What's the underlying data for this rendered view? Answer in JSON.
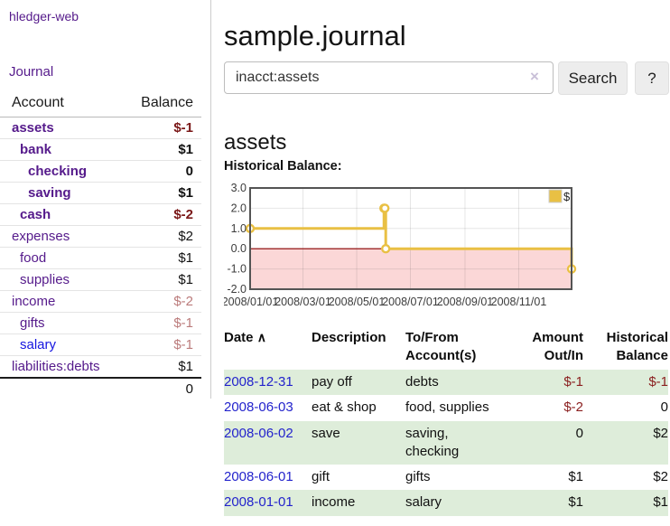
{
  "colors": {
    "link_purple": "#551a8b",
    "link_unvisited_blue": "#1515e0",
    "date_link_blue": "#2323cc",
    "negative_strong": "#7a1717",
    "negative_faded": "#bb7b7b",
    "negative_register": "#8b2020",
    "row_green": "#deedda",
    "chart_line_yellow": "#e9c044",
    "chart_negative_region": "#fbd7d7",
    "chart_zero_line": "#8b0000"
  },
  "sidebar": {
    "brand": "hledger-web",
    "journal_link": "Journal",
    "accounts_table": {
      "headers": {
        "account": "Account",
        "balance": "Balance"
      },
      "rows": [
        {
          "name": "assets",
          "depth": 1,
          "bold": true,
          "link": "visited",
          "balance": "$-1",
          "style": "neg-strong"
        },
        {
          "name": "bank",
          "depth": 2,
          "bold": true,
          "link": "visited",
          "balance": "$1",
          "style": "plain-strong"
        },
        {
          "name": "checking",
          "depth": 3,
          "bold": true,
          "link": "visited",
          "balance": "0",
          "style": "plain-strong"
        },
        {
          "name": "saving",
          "depth": 3,
          "bold": true,
          "link": "visited",
          "balance": "$1",
          "style": "plain-strong"
        },
        {
          "name": "cash",
          "depth": 2,
          "bold": true,
          "link": "visited",
          "balance": "$-2",
          "style": "neg-strong"
        },
        {
          "name": "expenses",
          "depth": 1,
          "bold": false,
          "link": "visited",
          "balance": "$2",
          "style": "plain"
        },
        {
          "name": "food",
          "depth": 2,
          "bold": false,
          "link": "visited",
          "balance": "$1",
          "style": "plain"
        },
        {
          "name": "supplies",
          "depth": 2,
          "bold": false,
          "link": "visited",
          "balance": "$1",
          "style": "plain"
        },
        {
          "name": "income",
          "depth": 1,
          "bold": false,
          "link": "visited",
          "balance": "$-2",
          "style": "neg-faded"
        },
        {
          "name": "gifts",
          "depth": 2,
          "bold": false,
          "link": "visited",
          "balance": "$-1",
          "style": "neg-faded"
        },
        {
          "name": "salary",
          "depth": 2,
          "bold": false,
          "link": "unvisited",
          "balance": "$-1",
          "style": "neg-faded"
        },
        {
          "name": "liabilities:debts",
          "depth": 1,
          "bold": false,
          "link": "visited",
          "balance": "$1",
          "style": "plain"
        }
      ],
      "total": "0"
    }
  },
  "main": {
    "title": "sample.journal",
    "search": {
      "value": "inacct:assets",
      "clear_icon": "×",
      "button": "Search",
      "help_button": "?"
    },
    "section_title": "assets",
    "chart_label": "Historical Balance:",
    "register_table": {
      "headers": {
        "date": "Date",
        "sort_icon": "∧",
        "description": "Description",
        "accounts_line1": "To/From",
        "accounts_line2": "Account(s)",
        "amount_line1": "Amount",
        "amount_line2": "Out/In",
        "balance_line1": "Historical",
        "balance_line2": "Balance"
      },
      "rows": [
        {
          "date": "2008-12-31",
          "description": "pay off",
          "accounts": "debts",
          "amount": "$-1",
          "amount_style": "neg",
          "balance": "$-1",
          "balance_style": "neg"
        },
        {
          "date": "2008-06-03",
          "description": "eat & shop",
          "accounts": "food, supplies",
          "amount": "$-2",
          "amount_style": "neg",
          "balance": "0",
          "balance_style": "plain"
        },
        {
          "date": "2008-06-02",
          "description": "save",
          "accounts": "saving, checking",
          "amount": "0",
          "amount_style": "plain",
          "balance": "$2",
          "balance_style": "plain"
        },
        {
          "date": "2008-06-01",
          "description": "gift",
          "accounts": "gifts",
          "amount": "$1",
          "amount_style": "plain",
          "balance": "$2",
          "balance_style": "plain"
        },
        {
          "date": "2008-01-01",
          "description": "income",
          "accounts": "salary",
          "amount": "$1",
          "amount_style": "plain",
          "balance": "$1",
          "balance_style": "plain"
        }
      ]
    }
  },
  "chart_data": {
    "type": "line",
    "step": true,
    "title": "Historical Balance:",
    "series": [
      {
        "name": "$",
        "color": "#e9c044",
        "points": [
          [
            "2008/01/01",
            1
          ],
          [
            "2008/06/01",
            2
          ],
          [
            "2008/06/02",
            2
          ],
          [
            "2008/06/03",
            0
          ],
          [
            "2008/12/31",
            -1
          ]
        ]
      }
    ],
    "x_range": [
      "2008/01/01",
      "2008/12/31"
    ],
    "ylim": [
      -2,
      3
    ],
    "yticks": [
      3.0,
      2.0,
      1.0,
      0.0,
      -1.0,
      -2.0
    ],
    "ytick_labels": [
      "3.0",
      "2.0",
      "1.0",
      "0.0",
      "-1.0",
      "-2.0"
    ],
    "xticks": [
      "2008/01/01",
      "2008/03/01",
      "2008/05/01",
      "2008/07/01",
      "2008/09/01",
      "2008/11/01"
    ],
    "grid": true,
    "negative_region_color": "#fbd7d7",
    "zero_line_color": "#8b0000",
    "legend": {
      "label": "$",
      "position": "top-right"
    }
  }
}
